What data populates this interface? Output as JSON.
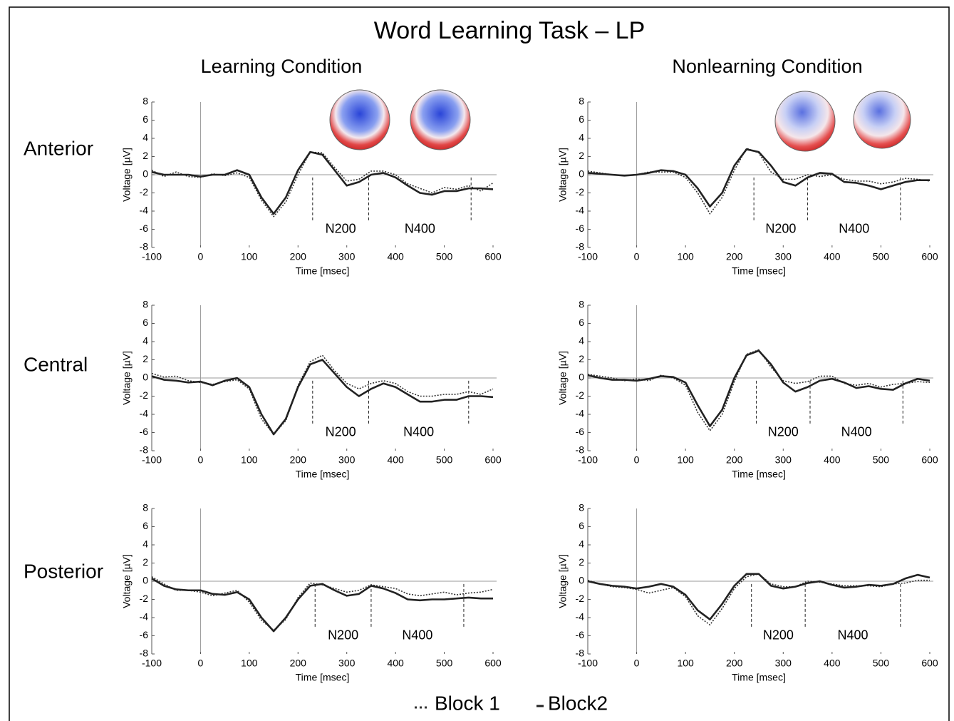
{
  "title": "Word Learning Task – LP",
  "chart_data": [
    {
      "type": "line",
      "column_title": "Learning Condition",
      "row_label": "Anterior",
      "xlabel": "Time [msec]",
      "ylabel": "Voltage [µV]",
      "x": [
        -100,
        -75,
        -50,
        -25,
        0,
        25,
        50,
        75,
        100,
        125,
        150,
        175,
        200,
        225,
        250,
        275,
        300,
        325,
        350,
        375,
        400,
        425,
        450,
        475,
        500,
        525,
        550,
        575,
        600
      ],
      "series": [
        {
          "name": "Block 1",
          "color": "#333333",
          "style": "dotted",
          "values": [
            0.5,
            -0.2,
            0.3,
            -0.2,
            -0.3,
            0.1,
            -0.1,
            0.2,
            -0.3,
            -2.8,
            -4.6,
            -3,
            0,
            2.5,
            2.4,
            0.8,
            -0.7,
            -0.5,
            0.4,
            0.4,
            0,
            -1,
            -1.5,
            -2,
            -1.4,
            -1.6,
            -1.2,
            -1.8,
            -0.9
          ]
        },
        {
          "name": "Block2",
          "color": "#222222",
          "style": "solid",
          "values": [
            0.3,
            0,
            0,
            0,
            -0.2,
            0,
            0,
            0.5,
            0,
            -2.5,
            -4.3,
            -2.5,
            0.5,
            2.5,
            2.2,
            0.5,
            -1.2,
            -0.8,
            0,
            0.2,
            -0.3,
            -1.2,
            -2,
            -2.2,
            -1.8,
            -1.8,
            -1.5,
            -1.5,
            -1.6
          ]
        }
      ],
      "markers": [
        230,
        345,
        555
      ],
      "annotations": [
        "N200",
        "N400"
      ],
      "xlim": [
        -100,
        600
      ],
      "ylim": [
        -8,
        8
      ],
      "xticks": [
        -100,
        0,
        100,
        200,
        300,
        400,
        500,
        600
      ],
      "yticks": [
        -8,
        -6,
        -4,
        -2,
        0,
        2,
        4,
        6,
        8
      ]
    },
    {
      "type": "line",
      "column_title": "Nonlearning Condition",
      "xlabel": "Time [msec]",
      "ylabel": "Voltage [µV]",
      "x": [
        -100,
        -75,
        -50,
        -25,
        0,
        25,
        50,
        75,
        100,
        125,
        150,
        175,
        200,
        225,
        250,
        275,
        300,
        325,
        350,
        375,
        400,
        425,
        450,
        475,
        500,
        525,
        550,
        575,
        600
      ],
      "series": [
        {
          "color": "#333333",
          "style": "dotted",
          "values": [
            0.4,
            0.2,
            0,
            -0.1,
            0,
            0.3,
            0.3,
            0.3,
            -0.3,
            -2,
            -4.3,
            -2.5,
            0.5,
            2.9,
            2.4,
            0.3,
            -0.5,
            -0.5,
            0,
            -0.2,
            0,
            -0.5,
            -0.7,
            -0.7,
            -1,
            -0.8,
            -0.4,
            -0.5,
            -0.7
          ]
        },
        {
          "color": "#222222",
          "style": "solid",
          "values": [
            0.2,
            0.1,
            0,
            -0.1,
            0,
            0.2,
            0.5,
            0.4,
            0,
            -1.5,
            -3.5,
            -2,
            1,
            2.8,
            2.5,
            1,
            -0.8,
            -1.2,
            -0.3,
            0.2,
            0.1,
            -0.8,
            -0.9,
            -1.2,
            -1.6,
            -1.2,
            -0.8,
            -0.6,
            -0.6
          ]
        }
      ],
      "markers": [
        240,
        350,
        540
      ],
      "annotations": [
        "N200",
        "N400"
      ],
      "xlim": [
        -100,
        600
      ],
      "ylim": [
        -8,
        8
      ],
      "xticks": [
        -100,
        0,
        100,
        200,
        300,
        400,
        500,
        600
      ],
      "yticks": [
        -8,
        -6,
        -4,
        -2,
        0,
        2,
        4,
        6,
        8
      ]
    },
    {
      "type": "line",
      "row_label": "Central",
      "xlabel": "Time [msec]",
      "ylabel": "Voltage [µV]",
      "x": [
        -100,
        -75,
        -50,
        -25,
        0,
        25,
        50,
        75,
        100,
        125,
        150,
        175,
        200,
        225,
        250,
        275,
        300,
        325,
        350,
        375,
        400,
        425,
        450,
        475,
        500,
        525,
        550,
        575,
        600
      ],
      "series": [
        {
          "color": "#333333",
          "style": "dotted",
          "values": [
            0.5,
            0.1,
            0.2,
            -0.3,
            -0.5,
            -0.7,
            -0.4,
            -0.2,
            -1.2,
            -4.5,
            -6.2,
            -4.7,
            -0.8,
            1.8,
            2.5,
            0.8,
            -0.6,
            -1.2,
            -0.6,
            -0.3,
            -0.6,
            -1.5,
            -2,
            -2,
            -1.8,
            -1.8,
            -1.5,
            -1.8,
            -1.2
          ]
        },
        {
          "color": "#222222",
          "style": "solid",
          "values": [
            0.2,
            -0.2,
            -0.3,
            -0.5,
            -0.4,
            -0.8,
            -0.3,
            0,
            -1,
            -4,
            -6.2,
            -4.5,
            -1,
            1.5,
            2,
            0.5,
            -1,
            -2,
            -1.2,
            -0.6,
            -1,
            -1.8,
            -2.6,
            -2.6,
            -2.4,
            -2.4,
            -2,
            -2,
            -2.1
          ]
        }
      ],
      "markers": [
        230,
        345,
        550
      ],
      "annotations": [
        "N200",
        "N400"
      ],
      "xlim": [
        -100,
        600
      ],
      "ylim": [
        -8,
        8
      ],
      "xticks": [
        -100,
        0,
        100,
        200,
        300,
        400,
        500,
        600
      ],
      "yticks": [
        -8,
        -6,
        -4,
        -2,
        0,
        2,
        4,
        6,
        8
      ]
    },
    {
      "type": "line",
      "xlabel": "Time [msec]",
      "ylabel": "Voltage [µV]",
      "x": [
        -100,
        -75,
        -50,
        -25,
        0,
        25,
        50,
        75,
        100,
        125,
        150,
        175,
        200,
        225,
        250,
        275,
        300,
        325,
        350,
        375,
        400,
        425,
        450,
        475,
        500,
        525,
        550,
        575,
        600
      ],
      "series": [
        {
          "color": "#333333",
          "style": "dotted",
          "values": [
            0.4,
            0.2,
            0,
            -0.3,
            -0.1,
            -0.3,
            0.3,
            0,
            -0.8,
            -3.8,
            -5.8,
            -4,
            -0.4,
            2.6,
            3.1,
            1.2,
            -0.3,
            -0.6,
            -0.4,
            0.2,
            0.2,
            -0.6,
            -0.8,
            -0.6,
            -1,
            -0.7,
            -0.6,
            -0.4,
            -0.5
          ]
        },
        {
          "color": "#222222",
          "style": "solid",
          "values": [
            0.3,
            0,
            -0.2,
            -0.2,
            -0.3,
            -0.1,
            0.2,
            0.1,
            -0.5,
            -3,
            -5.3,
            -3.5,
            0,
            2.5,
            3,
            1.5,
            -0.5,
            -1.5,
            -1,
            -0.3,
            -0.1,
            -0.5,
            -1.1,
            -0.9,
            -1.2,
            -1.3,
            -0.6,
            -0.1,
            -0.3
          ]
        }
      ],
      "markers": [
        245,
        355,
        545
      ],
      "annotations": [
        "N200",
        "N400"
      ],
      "xlim": [
        -100,
        600
      ],
      "ylim": [
        -8,
        8
      ],
      "xticks": [
        -100,
        0,
        100,
        200,
        300,
        400,
        500,
        600
      ],
      "yticks": [
        -8,
        -6,
        -4,
        -2,
        0,
        2,
        4,
        6,
        8
      ]
    },
    {
      "type": "line",
      "row_label": "Posterior",
      "xlabel": "Time [msec]",
      "ylabel": "Voltage [µV]",
      "x": [
        -100,
        -75,
        -50,
        -25,
        0,
        25,
        50,
        75,
        100,
        125,
        150,
        175,
        200,
        225,
        250,
        275,
        300,
        325,
        350,
        375,
        400,
        425,
        450,
        475,
        500,
        525,
        550,
        575,
        600
      ],
      "series": [
        {
          "color": "#333333",
          "style": "dotted",
          "values": [
            0.5,
            -0.3,
            -1,
            -1,
            -1.2,
            -1.6,
            -1.3,
            -1,
            -2.3,
            -4.3,
            -5.4,
            -4.2,
            -1.8,
            -0.2,
            -0.4,
            -0.8,
            -1.2,
            -1,
            -0.4,
            -0.6,
            -0.8,
            -1.4,
            -1.6,
            -1.4,
            -1.2,
            -1.5,
            -1.3,
            -1.2,
            -0.9
          ]
        },
        {
          "color": "#222222",
          "style": "solid",
          "values": [
            0.3,
            -0.5,
            -0.9,
            -1,
            -1,
            -1.4,
            -1.5,
            -1.2,
            -2,
            -4,
            -5.5,
            -4,
            -2,
            -0.5,
            -0.3,
            -1,
            -1.6,
            -1.4,
            -0.5,
            -0.8,
            -1.3,
            -2,
            -2.1,
            -2,
            -2,
            -1.9,
            -1.8,
            -1.9,
            -1.9
          ]
        }
      ],
      "markers": [
        235,
        350,
        540
      ],
      "annotations": [
        "N200",
        "N400"
      ],
      "xlim": [
        -100,
        600
      ],
      "ylim": [
        -8,
        8
      ],
      "xticks": [
        -100,
        0,
        100,
        200,
        300,
        400,
        500,
        600
      ],
      "yticks": [
        -8,
        -6,
        -4,
        -2,
        0,
        2,
        4,
        6,
        8
      ]
    },
    {
      "type": "line",
      "xlabel": "Time [msec]",
      "ylabel": "Voltage [µV]",
      "x": [
        -100,
        -75,
        -50,
        -25,
        0,
        25,
        50,
        75,
        100,
        125,
        150,
        175,
        200,
        225,
        250,
        275,
        300,
        325,
        350,
        375,
        400,
        425,
        450,
        475,
        500,
        525,
        550,
        575,
        600
      ],
      "series": [
        {
          "color": "#333333",
          "style": "dotted",
          "values": [
            0.1,
            -0.3,
            -0.6,
            -0.7,
            -0.9,
            -1.3,
            -1,
            -0.7,
            -1.7,
            -3.8,
            -4.8,
            -3,
            -0.8,
            0.5,
            0.8,
            -0.3,
            -0.6,
            -0.6,
            0,
            -0.1,
            -0.3,
            -0.5,
            -0.5,
            -0.5,
            -0.6,
            -0.3,
            -0.2,
            0.1,
            0.1
          ]
        },
        {
          "color": "#222222",
          "style": "solid",
          "values": [
            0,
            -0.3,
            -0.5,
            -0.6,
            -0.8,
            -0.6,
            -0.3,
            -0.6,
            -1.5,
            -3.2,
            -4.2,
            -2.5,
            -0.5,
            0.8,
            0.8,
            -0.5,
            -0.8,
            -0.6,
            -0.2,
            0,
            -0.4,
            -0.7,
            -0.6,
            -0.4,
            -0.5,
            -0.3,
            0.3,
            0.7,
            0.4
          ]
        }
      ],
      "markers": [
        235,
        345,
        540
      ],
      "annotations": [
        "N200",
        "N400"
      ],
      "xlim": [
        -100,
        600
      ],
      "ylim": [
        -8,
        8
      ],
      "xticks": [
        -100,
        0,
        100,
        200,
        300,
        400,
        500,
        600
      ],
      "yticks": [
        -8,
        -6,
        -4,
        -2,
        0,
        2,
        4,
        6,
        8
      ]
    }
  ]
}
